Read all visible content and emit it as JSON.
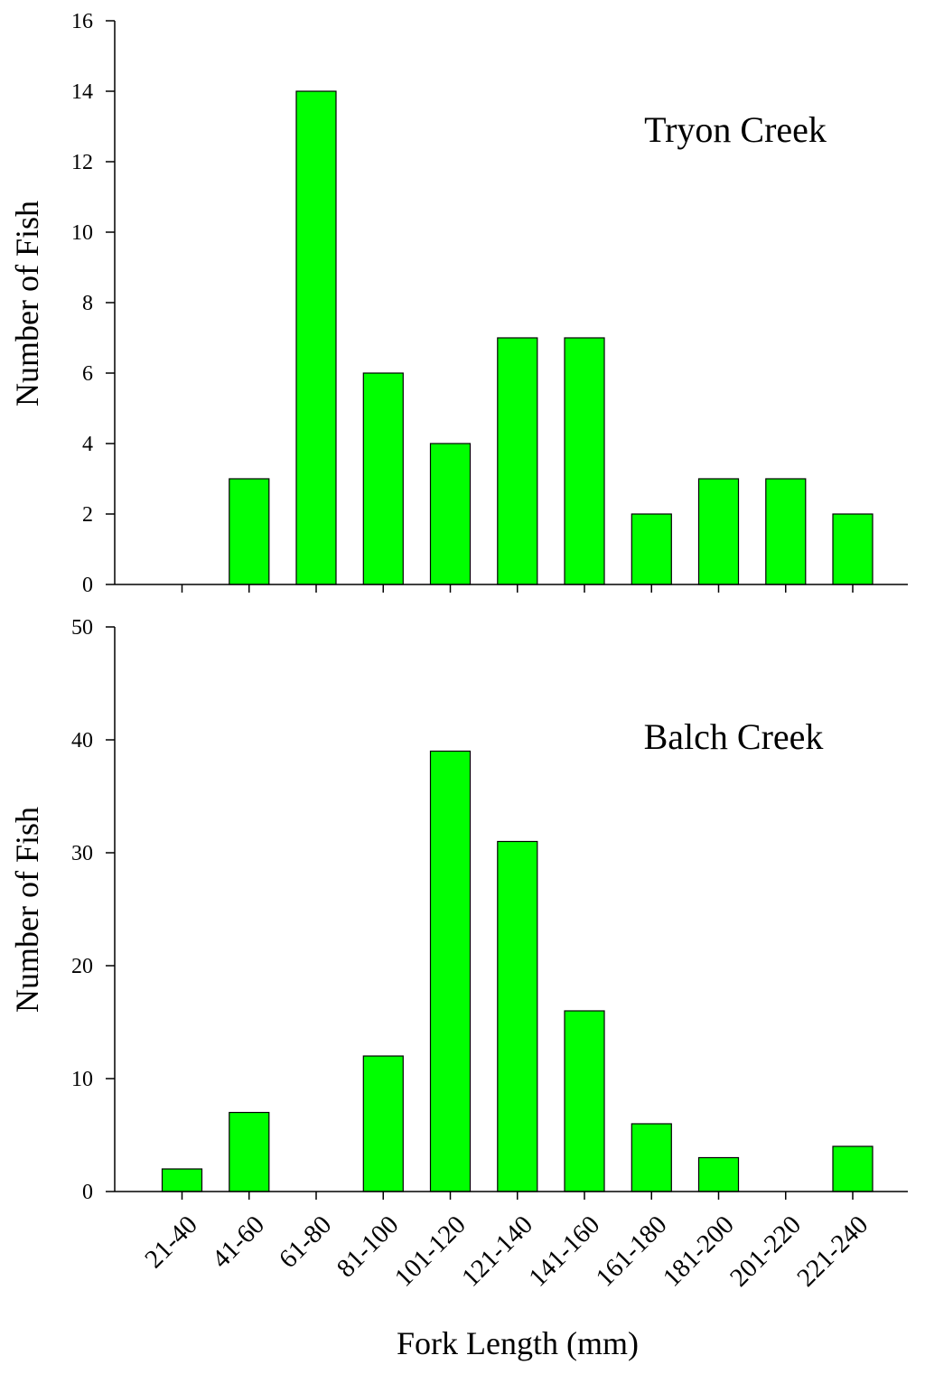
{
  "chart_data": [
    {
      "type": "bar",
      "panel_label": "Tryon Creek",
      "ylabel": "Number of Fish",
      "ylim": [
        0,
        16
      ],
      "yticks": [
        0,
        2,
        4,
        6,
        8,
        10,
        12,
        14,
        16
      ],
      "categories": [
        "21-40",
        "41-60",
        "61-80",
        "81-100",
        "101-120",
        "121-140",
        "141-160",
        "161-180",
        "181-200",
        "201-220",
        "221-240"
      ],
      "values": [
        0,
        3,
        14,
        6,
        4,
        7,
        7,
        2,
        3,
        3,
        2
      ],
      "bar_color": "#00ff00"
    },
    {
      "type": "bar",
      "panel_label": "Balch Creek",
      "ylabel": "Number of Fish",
      "xlabel": "Fork Length (mm)",
      "ylim": [
        0,
        50
      ],
      "yticks": [
        0,
        10,
        20,
        30,
        40,
        50
      ],
      "categories": [
        "21-40",
        "41-60",
        "61-80",
        "81-100",
        "101-120",
        "121-140",
        "141-160",
        "161-180",
        "181-200",
        "201-220",
        "221-240"
      ],
      "values": [
        2,
        7,
        0,
        12,
        39,
        31,
        16,
        6,
        3,
        0,
        4
      ],
      "bar_color": "#00ff00"
    }
  ]
}
